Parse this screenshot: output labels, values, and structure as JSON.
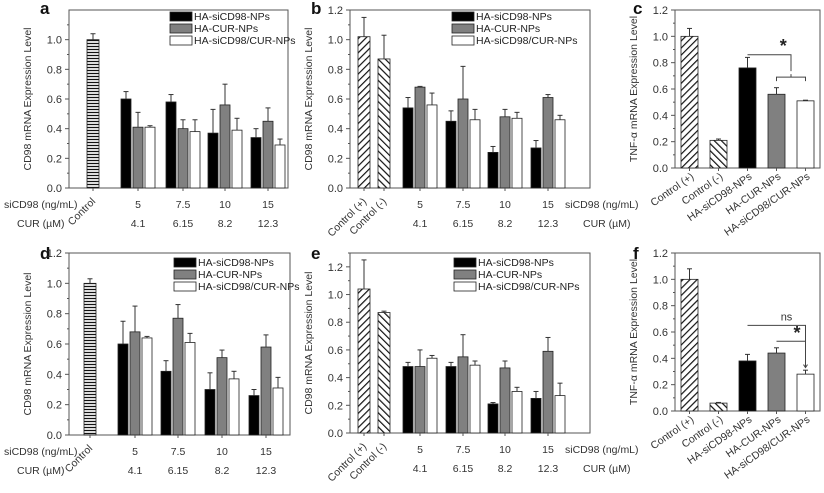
{
  "figure": {
    "colors": {
      "HA-siCD98-NPs": "#000000",
      "HA-CUR-NPs": "#808080",
      "HA-siCD98/CUR-NPs": "#ffffff",
      "axis": "#666666"
    },
    "row_labels": {
      "sicd98": "siCD98 (ng/mL)",
      "cur": "CUR (µM)"
    }
  },
  "chart_data": [
    {
      "panel": "a",
      "type": "bar",
      "ylabel": "CD98 mRNA Expression Level",
      "ylim": [
        0,
        1.2
      ],
      "yticks": [
        "0.0",
        "0.2",
        "0.4",
        "0.6",
        "0.8",
        "1.0"
      ],
      "legend": [
        "HA-siCD98-NPs",
        "HA-CUR-NPs",
        "HA-siCD98/CUR-NPs"
      ],
      "legend_position": "top-right",
      "controls": [
        {
          "label": "Control",
          "value": 1.0,
          "error": 0.04,
          "pattern": "horizontal"
        }
      ],
      "categories": [
        "5",
        "7.5",
        "10",
        "15"
      ],
      "categories_cur": [
        "4.1",
        "6.15",
        "8.2",
        "12.3"
      ],
      "series": [
        {
          "name": "HA-siCD98-NPs",
          "values": [
            0.6,
            0.58,
            0.37,
            0.34
          ],
          "errors": [
            0.05,
            0.05,
            0.16,
            0.06
          ]
        },
        {
          "name": "HA-CUR-NPs",
          "values": [
            0.41,
            0.4,
            0.56,
            0.45
          ],
          "errors": [
            0.1,
            0.06,
            0.14,
            0.09
          ]
        },
        {
          "name": "HA-siCD98/CUR-NPs",
          "values": [
            0.41,
            0.38,
            0.39,
            0.29
          ],
          "errors": [
            0.01,
            0.08,
            0.08,
            0.04
          ]
        }
      ]
    },
    {
      "panel": "b",
      "type": "bar",
      "ylabel": "CD98 mRNA Expression Level",
      "ylim": [
        0,
        1.2
      ],
      "yticks": [
        "0.0",
        "0.2",
        "0.4",
        "0.6",
        "0.8",
        "1.0",
        "1.2"
      ],
      "legend": [
        "HA-siCD98-NPs",
        "HA-CUR-NPs",
        "HA-siCD98/CUR-NPs"
      ],
      "legend_position": "top-right",
      "controls": [
        {
          "label": "Control (+)",
          "value": 1.02,
          "error": 0.13,
          "pattern": "diag-right"
        },
        {
          "label": "Control (-)",
          "value": 0.87,
          "error": 0.16,
          "pattern": "diag-left"
        }
      ],
      "categories": [
        "5",
        "7.5",
        "10",
        "15"
      ],
      "categories_cur": [
        "4.1",
        "6.15",
        "8.2",
        "12.3"
      ],
      "series": [
        {
          "name": "HA-siCD98-NPs",
          "values": [
            0.54,
            0.45,
            0.24,
            0.27
          ],
          "errors": [
            0.07,
            0.07,
            0.04,
            0.05
          ]
        },
        {
          "name": "HA-CUR-NPs",
          "values": [
            0.68,
            0.6,
            0.48,
            0.61
          ],
          "errors": [
            0.005,
            0.22,
            0.05,
            0.02
          ]
        },
        {
          "name": "HA-siCD98/CUR-NPs",
          "values": [
            0.56,
            0.46,
            0.47,
            0.46
          ],
          "errors": [
            0.08,
            0.07,
            0.04,
            0.03
          ]
        }
      ]
    },
    {
      "panel": "c",
      "type": "bar",
      "ylabel": "TNF-α mRNA Expression Level",
      "ylim": [
        0,
        1.2
      ],
      "yticks": [
        "0.0",
        "0.2",
        "0.4",
        "0.6",
        "0.8",
        "1.0",
        "1.2"
      ],
      "categories": [
        "Control (+)",
        "Control (-)",
        "HA-siCD98-NPs",
        "HA-CUR-NPs",
        "HA-siCD98/CUR-NPs"
      ],
      "values": [
        1.0,
        0.21,
        0.76,
        0.56,
        0.51
      ],
      "errors": [
        0.06,
        0.01,
        0.08,
        0.05,
        0.005
      ],
      "patterns": [
        "diag-right",
        "diag-left",
        "black",
        "gray",
        "white"
      ],
      "annotations": [
        {
          "text": "*",
          "from": 2,
          "to": [
            3,
            4
          ],
          "type": "bracket"
        }
      ]
    },
    {
      "panel": "d",
      "type": "bar",
      "ylabel": "CD98 mRNA Expression Level",
      "ylim": [
        0,
        1.2
      ],
      "yticks": [
        "0.0",
        "0.2",
        "0.4",
        "0.6",
        "0.8",
        "1.0",
        "1.2"
      ],
      "legend": [
        "HA-siCD98-NPs",
        "HA-CUR-NPs",
        "HA-siCD98/CUR-NPs"
      ],
      "legend_position": "top-right",
      "controls": [
        {
          "label": "Control",
          "value": 1.0,
          "error": 0.03,
          "pattern": "horizontal"
        }
      ],
      "categories": [
        "5",
        "7.5",
        "10",
        "15"
      ],
      "categories_cur": [
        "4.1",
        "6.15",
        "8.2",
        "12.3"
      ],
      "series": [
        {
          "name": "HA-siCD98-NPs",
          "values": [
            0.6,
            0.42,
            0.3,
            0.26
          ],
          "errors": [
            0.15,
            0.07,
            0.11,
            0.04
          ]
        },
        {
          "name": "HA-CUR-NPs",
          "values": [
            0.68,
            0.77,
            0.51,
            0.58
          ],
          "errors": [
            0.17,
            0.09,
            0.05,
            0.08
          ]
        },
        {
          "name": "HA-siCD98/CUR-NPs",
          "values": [
            0.64,
            0.61,
            0.37,
            0.31
          ],
          "errors": [
            0.01,
            0.06,
            0.05,
            0.07
          ]
        }
      ]
    },
    {
      "panel": "e",
      "type": "bar",
      "ylabel": "CD98 mRNA Expression Level",
      "ylim": [
        0,
        1.3
      ],
      "yticks": [
        "0.0",
        "0.2",
        "0.4",
        "0.6",
        "0.8",
        "1.0",
        "1.2"
      ],
      "legend": [
        "HA-siCD98-NPs",
        "HA-CUR-NPs",
        "HA-siCD98/CUR-NPs"
      ],
      "legend_position": "top-right",
      "controls": [
        {
          "label": "Control (+)",
          "value": 1.04,
          "error": 0.21,
          "pattern": "diag-right"
        },
        {
          "label": "Control (-)",
          "value": 0.87,
          "error": 0.01,
          "pattern": "diag-left"
        }
      ],
      "categories": [
        "5",
        "7.5",
        "10",
        "15"
      ],
      "categories_cur": [
        "4.1",
        "6.15",
        "8.2",
        "12.3"
      ],
      "series": [
        {
          "name": "HA-siCD98-NPs",
          "values": [
            0.48,
            0.48,
            0.21,
            0.25
          ],
          "errors": [
            0.03,
            0.03,
            0.01,
            0.05
          ]
        },
        {
          "name": "HA-CUR-NPs",
          "values": [
            0.48,
            0.55,
            0.47,
            0.59
          ],
          "errors": [
            0.12,
            0.16,
            0.05,
            0.1
          ]
        },
        {
          "name": "HA-siCD98/CUR-NPs",
          "values": [
            0.54,
            0.49,
            0.3,
            0.27
          ],
          "errors": [
            0.02,
            0.03,
            0.03,
            0.09
          ]
        }
      ]
    },
    {
      "panel": "f",
      "type": "bar",
      "ylabel": "TNF-α mRNA Expression Level",
      "ylim": [
        0,
        1.2
      ],
      "yticks": [
        "0.0",
        "0.2",
        "0.4",
        "0.6",
        "0.8",
        "1.0",
        "1.2"
      ],
      "categories": [
        "Control (+)",
        "Control (-)",
        "HA-siCD98-NPs",
        "HA-CUR-NPs",
        "HA-siCD98/CUR-NPs"
      ],
      "values": [
        1.0,
        0.06,
        0.38,
        0.44,
        0.28
      ],
      "errors": [
        0.08,
        0.005,
        0.05,
        0.04,
        0.03
      ],
      "patterns": [
        "diag-right",
        "diag-left",
        "black",
        "gray",
        "white"
      ],
      "annotations": [
        {
          "text": "ns",
          "from": 2,
          "to": 4,
          "type": "line"
        },
        {
          "text": "*",
          "from": 3,
          "to": 4,
          "type": "line"
        }
      ]
    }
  ]
}
